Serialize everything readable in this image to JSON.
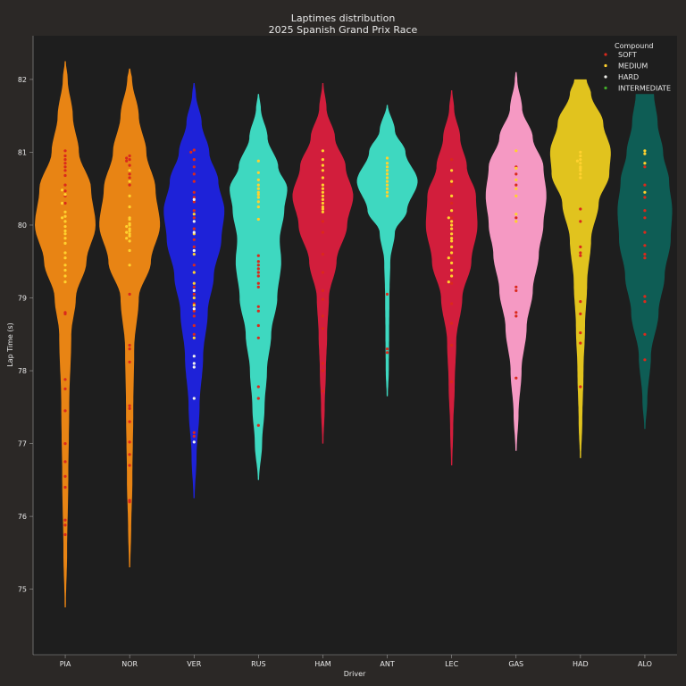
{
  "chart_data": {
    "type": "violin",
    "title": "Laptimes distribution",
    "subtitle": "2025 Spanish Grand Prix Race",
    "xlabel": "Driver",
    "ylabel": "Lap Time (s)",
    "ylim": [
      74.1,
      82.6
    ],
    "yticks": [
      75,
      76,
      77,
      78,
      79,
      80,
      81,
      82
    ],
    "grid": false,
    "legend": {
      "title": "Compound",
      "position": "top-right",
      "items": [
        {
          "label": "SOFT",
          "color": "#da291c"
        },
        {
          "label": "MEDIUM",
          "color": "#ffd12e"
        },
        {
          "label": "HARD",
          "color": "#f0f0ec"
        },
        {
          "label": "INTERMEDIATE",
          "color": "#43b02a"
        }
      ]
    },
    "colors": {
      "background": "#2b2826",
      "plot_area": "#1e1e1e",
      "text": "#e8e8e8"
    },
    "drivers": [
      {
        "name": "PIA",
        "color": "#e88414",
        "range": [
          74.75,
          82.25
        ],
        "shape": [
          [
            74.75,
            0.02
          ],
          [
            75.5,
            0.06
          ],
          [
            76.5,
            0.1
          ],
          [
            77.5,
            0.13
          ],
          [
            78.5,
            0.2
          ],
          [
            79.0,
            0.35
          ],
          [
            79.5,
            0.7
          ],
          [
            80.0,
            1.0
          ],
          [
            80.5,
            0.85
          ],
          [
            81.0,
            0.45
          ],
          [
            81.5,
            0.25
          ],
          [
            82.0,
            0.08
          ],
          [
            82.25,
            0.02
          ]
        ],
        "points": [
          {
            "c": "SOFT",
            "v": [
              81.02,
              80.95,
              80.9,
              80.85,
              80.8,
              80.75,
              80.68,
              80.55,
              80.47,
              80.4,
              80.3,
              78.8,
              78.78,
              77.88,
              77.75,
              77.45,
              77.0,
              76.75,
              76.55,
              76.4,
              75.95,
              75.88,
              75.75
            ]
          },
          {
            "c": "MEDIUM",
            "v": [
              80.48,
              80.42,
              80.3,
              80.18,
              80.12,
              80.1,
              80.05,
              79.98,
              79.92,
              79.88,
              79.82,
              79.75,
              79.62,
              79.55,
              79.45,
              79.38,
              79.3,
              79.22
            ]
          }
        ]
      },
      {
        "name": "NOR",
        "color": "#e88414",
        "range": [
          75.3,
          82.15
        ],
        "shape": [
          [
            75.3,
            0.02
          ],
          [
            75.8,
            0.05
          ],
          [
            76.5,
            0.09
          ],
          [
            77.5,
            0.12
          ],
          [
            78.3,
            0.15
          ],
          [
            79.0,
            0.3
          ],
          [
            79.5,
            0.7
          ],
          [
            80.0,
            1.0
          ],
          [
            80.5,
            0.85
          ],
          [
            81.0,
            0.55
          ],
          [
            81.5,
            0.3
          ],
          [
            82.0,
            0.08
          ],
          [
            82.15,
            0.02
          ]
        ],
        "points": [
          {
            "c": "SOFT",
            "v": [
              80.95,
              80.92,
              80.9,
              80.88,
              80.82,
              80.7,
              80.65,
              80.55,
              79.05,
              78.35,
              78.3,
              78.12,
              77.52,
              77.48,
              77.3,
              77.02,
              76.85,
              76.7,
              76.22,
              76.2
            ]
          },
          {
            "c": "MEDIUM",
            "v": [
              80.6,
              80.4,
              80.25,
              80.1,
              80.08,
              80.02,
              80.0,
              79.98,
              79.95,
              79.92,
              79.9,
              79.88,
              79.85,
              79.82,
              79.78,
              79.65,
              79.45,
              80.75
            ]
          }
        ]
      },
      {
        "name": "VER",
        "color": "#1e22d8",
        "range": [
          76.25,
          81.95
        ],
        "shape": [
          [
            76.25,
            0.02
          ],
          [
            76.8,
            0.08
          ],
          [
            77.5,
            0.18
          ],
          [
            78.2,
            0.3
          ],
          [
            78.8,
            0.45
          ],
          [
            79.3,
            0.65
          ],
          [
            79.8,
            0.9
          ],
          [
            80.2,
            1.0
          ],
          [
            80.6,
            0.8
          ],
          [
            81.0,
            0.5
          ],
          [
            81.4,
            0.25
          ],
          [
            81.8,
            0.06
          ],
          [
            81.95,
            0.02
          ]
        ],
        "points": [
          {
            "c": "SOFT",
            "v": [
              81.03,
              81.0,
              80.9,
              80.8,
              80.7,
              80.6,
              80.45,
              80.38,
              80.32,
              80.2,
              80.1,
              79.95,
              79.8,
              79.7,
              79.45,
              79.15,
              79.05,
              78.92,
              78.82,
              78.75,
              78.62,
              78.5,
              77.15,
              77.1
            ]
          },
          {
            "c": "MEDIUM",
            "v": [
              80.15,
              79.88,
              79.6,
              79.35,
              79.2,
              79.0,
              78.9,
              78.45
            ]
          },
          {
            "c": "HARD",
            "v": [
              80.35,
              80.05,
              79.9,
              79.65,
              79.1,
              78.85,
              78.2,
              78.1,
              78.05,
              77.62,
              77.02
            ]
          }
        ]
      },
      {
        "name": "RUS",
        "color": "#3ed8c0",
        "range": [
          76.5,
          81.8
        ],
        "shape": [
          [
            76.5,
            0.02
          ],
          [
            77.0,
            0.12
          ],
          [
            77.5,
            0.2
          ],
          [
            78.0,
            0.28
          ],
          [
            78.5,
            0.42
          ],
          [
            79.0,
            0.62
          ],
          [
            79.5,
            0.75
          ],
          [
            79.8,
            0.7
          ],
          [
            80.2,
            0.85
          ],
          [
            80.5,
            0.95
          ],
          [
            80.8,
            0.65
          ],
          [
            81.2,
            0.3
          ],
          [
            81.6,
            0.08
          ],
          [
            81.8,
            0.02
          ]
        ],
        "points": [
          {
            "c": "SOFT",
            "v": [
              79.58,
              79.5,
              79.45,
              79.4,
              79.35,
              79.3,
              79.2,
              79.15,
              78.88,
              78.82,
              78.62,
              78.45,
              77.78,
              77.62,
              77.25
            ]
          },
          {
            "c": "MEDIUM",
            "v": [
              80.88,
              80.72,
              80.62,
              80.55,
              80.5,
              80.45,
              80.42,
              80.38,
              80.32,
              80.25,
              80.08
            ]
          }
        ]
      },
      {
        "name": "HAM",
        "color": "#d21e3c",
        "range": [
          77.0,
          81.95
        ],
        "shape": [
          [
            77.0,
            0.02
          ],
          [
            77.5,
            0.06
          ],
          [
            78.0,
            0.1
          ],
          [
            78.5,
            0.14
          ],
          [
            79.0,
            0.2
          ],
          [
            79.5,
            0.45
          ],
          [
            80.0,
            0.8
          ],
          [
            80.4,
            1.0
          ],
          [
            80.8,
            0.75
          ],
          [
            81.2,
            0.4
          ],
          [
            81.6,
            0.12
          ],
          [
            81.95,
            0.02
          ]
        ],
        "points": [
          {
            "c": "SOFT",
            "v": [
              80.05,
              79.9,
              79.6,
              79.35,
              79.1,
              78.98,
              78.75,
              78.58,
              78.1,
              78.0,
              77.72
            ]
          },
          {
            "c": "MEDIUM",
            "v": [
              81.02,
              80.9,
              80.82,
              80.75,
              80.65,
              80.55,
              80.5,
              80.45,
              80.4,
              80.35,
              80.3,
              80.25,
              80.22,
              80.18
            ]
          }
        ]
      },
      {
        "name": "ANT",
        "color": "#3ed8c0",
        "range": [
          77.65,
          81.65
        ],
        "shape": [
          [
            77.65,
            0.02
          ],
          [
            78.0,
            0.05
          ],
          [
            78.5,
            0.06
          ],
          [
            79.0,
            0.07
          ],
          [
            79.5,
            0.1
          ],
          [
            79.9,
            0.25
          ],
          [
            80.2,
            0.65
          ],
          [
            80.6,
            1.0
          ],
          [
            81.0,
            0.6
          ],
          [
            81.3,
            0.25
          ],
          [
            81.65,
            0.02
          ]
        ],
        "points": [
          {
            "c": "SOFT",
            "v": [
              79.05,
              78.3,
              78.25
            ]
          },
          {
            "c": "MEDIUM",
            "v": [
              80.92,
              80.85,
              80.8,
              80.75,
              80.7,
              80.65,
              80.6,
              80.55,
              80.5,
              80.45,
              80.4
            ]
          }
        ]
      },
      {
        "name": "LEC",
        "color": "#d21e3c",
        "range": [
          76.7,
          81.85
        ],
        "shape": [
          [
            76.7,
            0.02
          ],
          [
            77.2,
            0.05
          ],
          [
            77.8,
            0.1
          ],
          [
            78.4,
            0.15
          ],
          [
            79.0,
            0.35
          ],
          [
            79.5,
            0.65
          ],
          [
            80.0,
            0.85
          ],
          [
            80.4,
            0.8
          ],
          [
            80.8,
            0.5
          ],
          [
            81.2,
            0.28
          ],
          [
            81.6,
            0.08
          ],
          [
            81.85,
            0.02
          ]
        ],
        "points": [
          {
            "c": "SOFT",
            "v": [
              80.9,
              80.55,
              80.3,
              80.1,
              79.55,
              79.2,
              78.92,
              78.65,
              78.35,
              77.85
            ]
          },
          {
            "c": "MEDIUM",
            "v": [
              80.75,
              80.6,
              80.4,
              80.2,
              80.1,
              80.05,
              80.0,
              79.95,
              79.88,
              79.82,
              79.78,
              79.7,
              79.62,
              79.55,
              79.48,
              79.38,
              79.3,
              79.22
            ]
          }
        ]
      },
      {
        "name": "GAS",
        "color": "#f599c3",
        "range": [
          76.9,
          82.1
        ],
        "shape": [
          [
            76.9,
            0.02
          ],
          [
            77.4,
            0.08
          ],
          [
            78.0,
            0.18
          ],
          [
            78.6,
            0.35
          ],
          [
            79.1,
            0.55
          ],
          [
            79.6,
            0.75
          ],
          [
            80.0,
            0.9
          ],
          [
            80.4,
            1.0
          ],
          [
            80.8,
            0.9
          ],
          [
            81.2,
            0.55
          ],
          [
            81.6,
            0.2
          ],
          [
            82.0,
            0.04
          ],
          [
            82.1,
            0.02
          ]
        ],
        "points": [
          {
            "c": "SOFT",
            "v": [
              80.8,
              80.7,
              80.55,
              80.1,
              79.15,
              79.1,
              78.8,
              78.75,
              77.9
            ]
          },
          {
            "c": "MEDIUM",
            "v": [
              81.02,
              80.78,
              80.62,
              80.5,
              80.4,
              80.15,
              80.05
            ]
          }
        ]
      },
      {
        "name": "HAD",
        "color": "#e1c31e",
        "range": [
          76.8,
          82.0
        ],
        "shape": [
          [
            76.8,
            0.02
          ],
          [
            77.3,
            0.06
          ],
          [
            78.0,
            0.1
          ],
          [
            78.6,
            0.15
          ],
          [
            79.2,
            0.22
          ],
          [
            79.8,
            0.35
          ],
          [
            80.3,
            0.6
          ],
          [
            80.7,
            0.95
          ],
          [
            81.0,
            1.0
          ],
          [
            81.4,
            0.75
          ],
          [
            81.8,
            0.35
          ],
          [
            82.0,
            0.2
          ]
        ],
        "points": [
          {
            "c": "SOFT",
            "v": [
              80.22,
              80.05,
              79.7,
              79.62,
              79.58,
              78.95,
              78.78,
              78.52,
              78.38,
              77.78
            ]
          },
          {
            "c": "MEDIUM",
            "v": [
              81.0,
              80.95,
              80.9,
              80.88,
              80.85,
              80.8,
              80.78,
              80.75,
              80.7,
              80.65
            ]
          }
        ]
      },
      {
        "name": "ALO",
        "color": "#0e5d55",
        "range": [
          77.2,
          81.8
        ],
        "shape": [
          [
            77.2,
            0.02
          ],
          [
            77.6,
            0.08
          ],
          [
            78.2,
            0.2
          ],
          [
            78.8,
            0.45
          ],
          [
            79.3,
            0.65
          ],
          [
            79.8,
            0.85
          ],
          [
            80.2,
            0.9
          ],
          [
            80.6,
            0.8
          ],
          [
            81.0,
            0.6
          ],
          [
            81.4,
            0.42
          ],
          [
            81.8,
            0.3
          ]
        ],
        "points": [
          {
            "c": "SOFT",
            "v": [
              80.8,
              80.55,
              80.38,
              80.2,
              80.1,
              79.9,
              79.72,
              79.6,
              79.55,
              79.02,
              78.95,
              78.5,
              78.15
            ]
          },
          {
            "c": "MEDIUM",
            "v": [
              81.02,
              80.98,
              80.85,
              80.45
            ]
          }
        ]
      }
    ]
  }
}
